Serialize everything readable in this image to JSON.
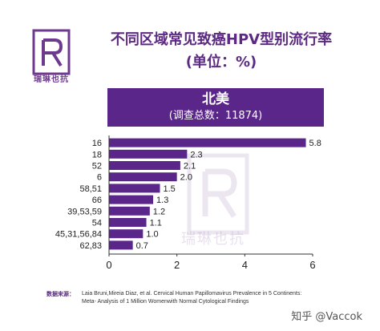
{
  "brand": {
    "logo_text": "瑞琳也抗",
    "watermark_text": "瑞琳也抗"
  },
  "header": {
    "title_line1": "不同区域常见致癌HPV型别流行率",
    "title_line2": "(单位：%)"
  },
  "banner": {
    "region": "北美",
    "sample": "(调查总数：11874)"
  },
  "chart_data": {
    "type": "bar",
    "orientation": "horizontal",
    "categories": [
      "16",
      "18",
      "52",
      "6",
      "58,51",
      "66",
      "39,53,59",
      "54",
      "45,31,56,84",
      "62,83"
    ],
    "values": [
      5.8,
      2.3,
      2.1,
      2.0,
      1.5,
      1.3,
      1.2,
      1.1,
      1.0,
      0.7
    ],
    "value_labels": [
      "5.8",
      "2.3",
      "2.1",
      "2.0",
      "1.5",
      "1.3",
      "1.2",
      "1.1",
      "1.0",
      "0.7"
    ],
    "xlim": [
      0,
      6
    ],
    "xticks": [
      "0",
      "2",
      "4",
      "6"
    ],
    "bar_color": "#5a2689"
  },
  "source": {
    "label": "数据来源：",
    "text": "Laia Bruni,Mireia Diaz, et al. Cervical Human Papillomavirus Prevalence in 5 Continents: Meta- Analysis of 1 Million Womenwith Normal Cytological Findings"
  },
  "credit": "知乎 @Vaccok"
}
